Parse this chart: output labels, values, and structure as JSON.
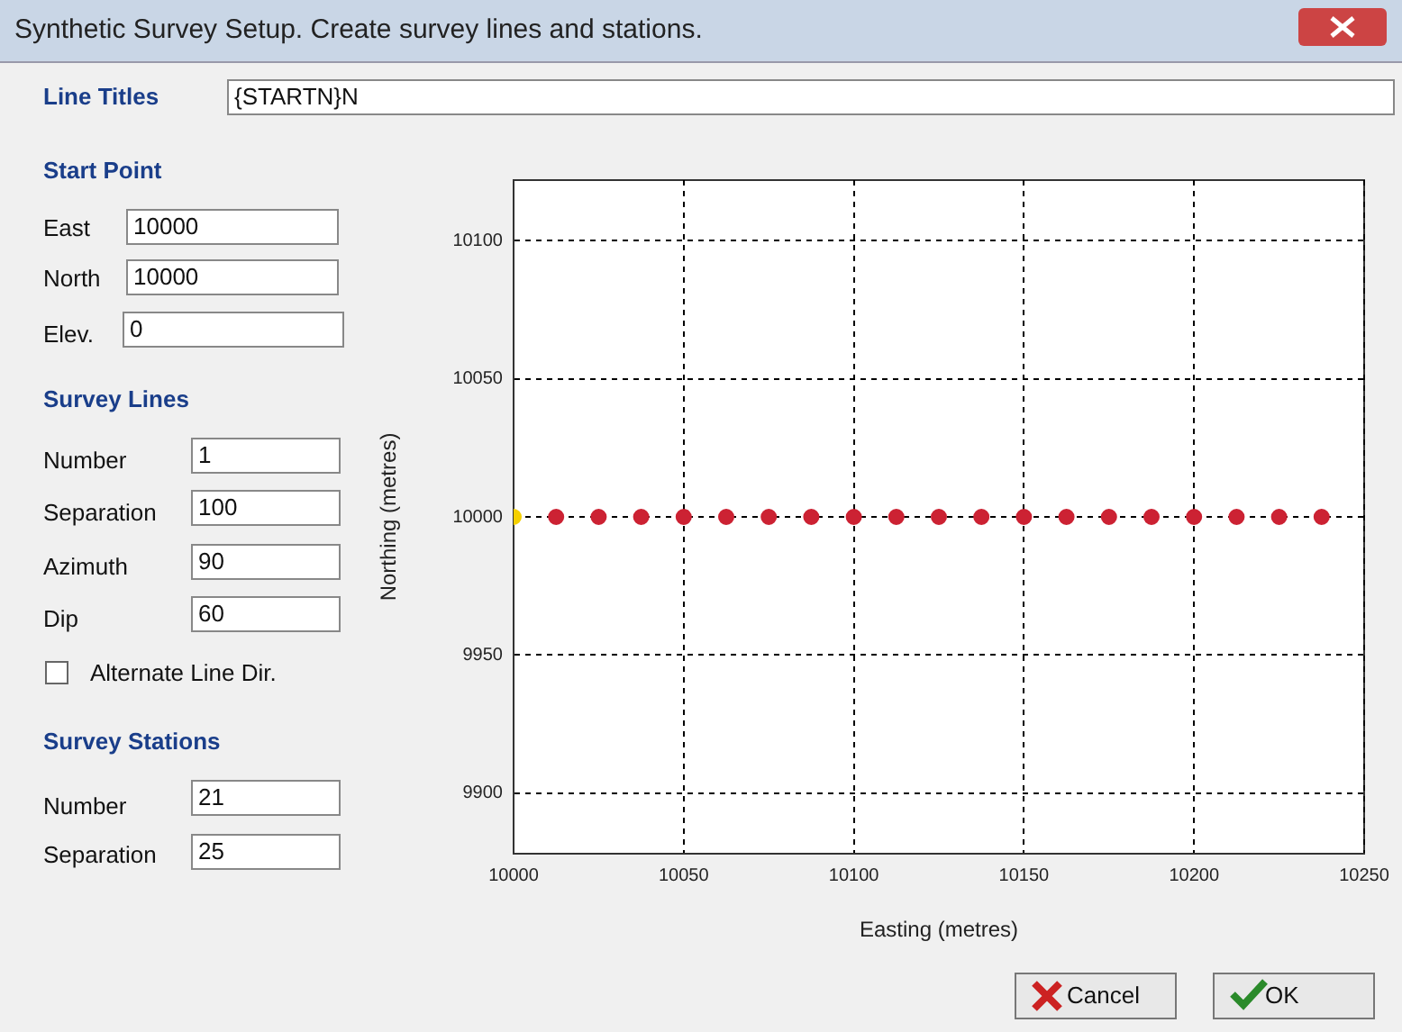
{
  "chart_data": {
    "type": "scatter",
    "title": "Synthetic Survey Setup. Create survey lines and stations.",
    "xlabel": "Easting (metres)",
    "ylabel": "Northing (metres)",
    "x": [
      10000,
      10012.5,
      10025,
      10037.5,
      10050,
      10062.5,
      10075,
      10087.5,
      10100,
      10112.5,
      10125,
      10137.5,
      10150,
      10162.5,
      10175,
      10187.5,
      10200,
      10212.5,
      10225,
      10237.5
    ],
    "values": [
      10000,
      10000,
      10000,
      10000,
      10000,
      10000,
      10000,
      10000,
      10000,
      10000,
      10000,
      10000,
      10000,
      10000,
      10000,
      10000,
      10000,
      10000,
      10000,
      10000
    ],
    "colors": [
      "#f5d000",
      "#cc2233",
      "#cc2233",
      "#cc2233",
      "#cc2233",
      "#cc2233",
      "#cc2233",
      "#cc2233",
      "#cc2233",
      "#cc2233",
      "#cc2233",
      "#cc2233",
      "#cc2233",
      "#cc2233",
      "#cc2233",
      "#cc2233",
      "#cc2233",
      "#cc2233",
      "#cc2233",
      "#cc2233"
    ],
    "xlim": [
      10000,
      10250
    ],
    "xticks": [
      10000,
      10050,
      10100,
      10150,
      10200,
      10250
    ],
    "ylim": [
      9878,
      10122
    ],
    "yticks": [
      9900,
      9950,
      10000,
      10050,
      10100
    ],
    "grid": true,
    "marker": "circle",
    "legend": false,
    "annotations": [
      "Line Titles",
      "{STARTN}N",
      "Start Point",
      "East",
      "10000",
      "North",
      "10000",
      "Elev.",
      "0",
      "Survey Lines",
      "Number",
      "1",
      "Separation",
      "100",
      "Azimuth",
      "90",
      "Dip",
      "60",
      "Alternate Line Dir.",
      "Survey Stations",
      "Number",
      "21",
      "Separation",
      "25",
      "Cancel",
      "OK"
    ]
  }
}
